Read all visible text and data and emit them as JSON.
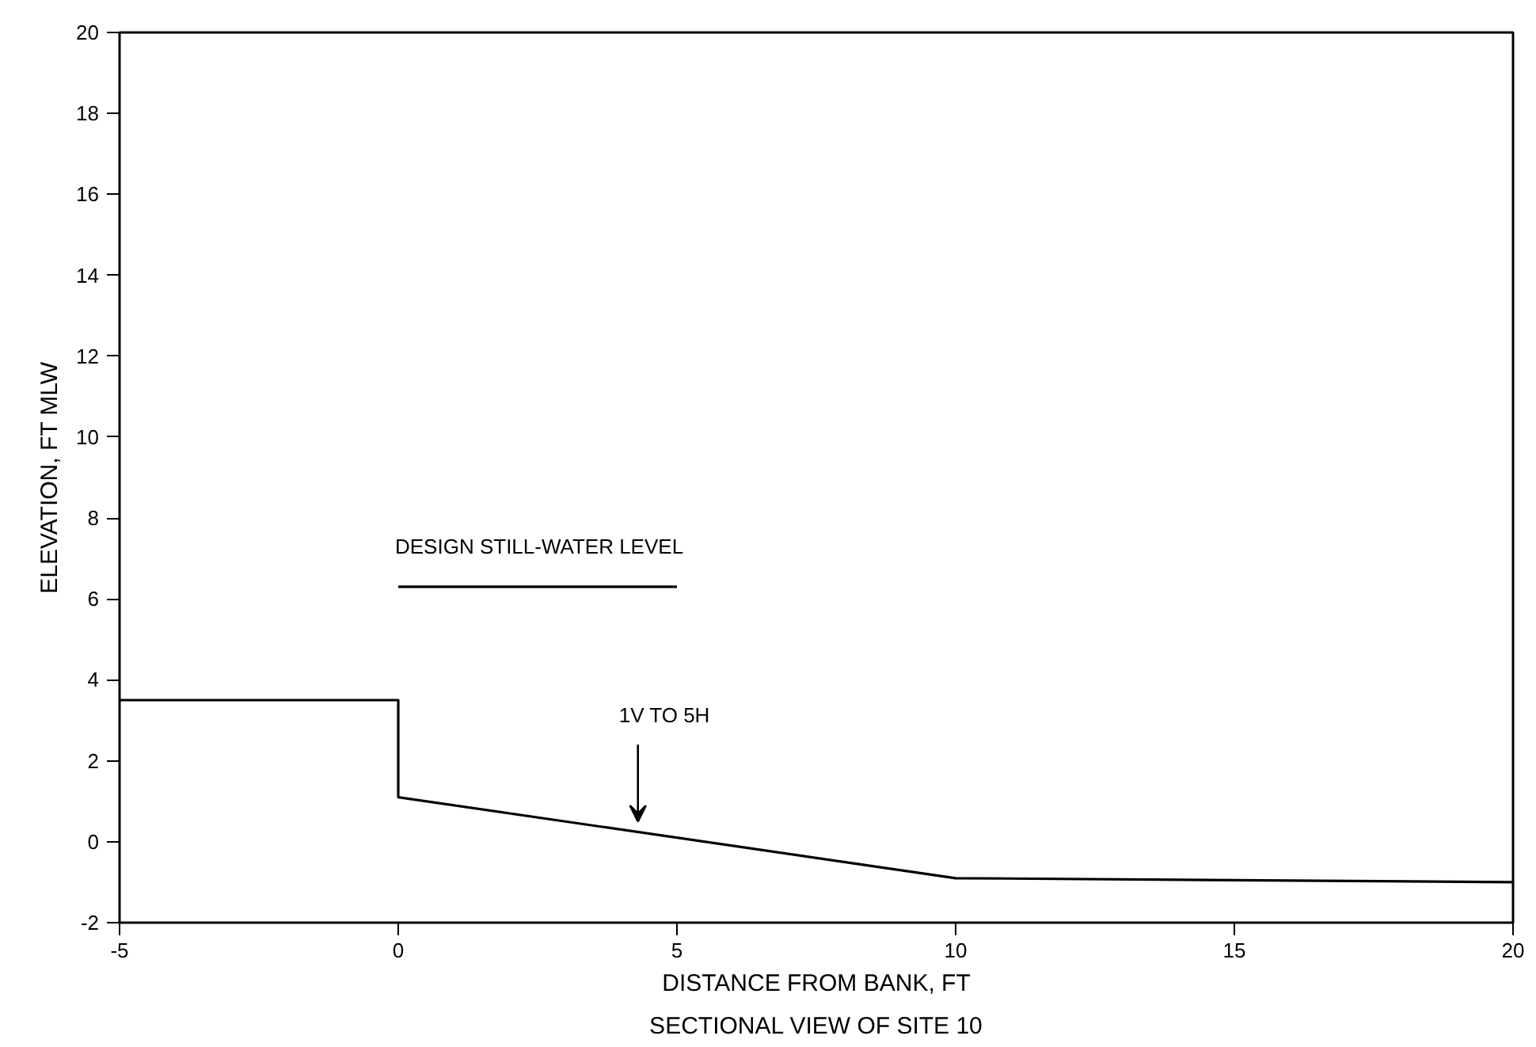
{
  "chart_data": {
    "type": "line",
    "xlabel": "DISTANCE FROM BANK, FT",
    "ylabel": "ELEVATION, FT MLW",
    "xlim": [
      -5,
      20
    ],
    "xticks": [
      -5,
      0,
      5,
      10,
      15,
      20
    ],
    "ylim": [
      -2,
      20
    ],
    "yticks": [
      -2,
      0,
      2,
      4,
      6,
      8,
      10,
      12,
      14,
      16,
      18,
      20
    ],
    "grid": false,
    "marker": "none",
    "line_style": "solid",
    "series": [
      {
        "color": "#000000",
        "x": [
          -5,
          0,
          0,
          10,
          20
        ],
        "values": [
          3.5,
          3.5,
          1.1,
          -0.9,
          -1.0
        ]
      },
      {
        "name": "DESIGN STILL-WATER LEVEL",
        "color": "#000000",
        "x": [
          0,
          5
        ],
        "values": [
          6.3,
          6.3
        ]
      }
    ],
    "annotations": [
      {
        "text": "1V TO 5H",
        "x": 4.3,
        "y": 0.4
      },
      "SECTIONAL VIEW OF SITE 10"
    ]
  }
}
